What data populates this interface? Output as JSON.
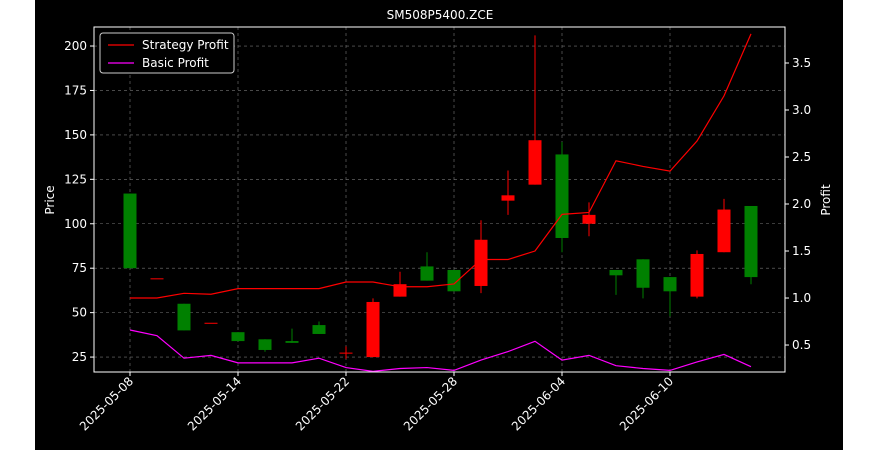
{
  "chart_data": {
    "type": "candlestick",
    "title": "SM508P5400.ZCE",
    "ylabel": "Price",
    "y2label": "Profit",
    "categories": [
      "2025-05-08",
      null,
      null,
      null,
      "2025-05-14",
      null,
      null,
      null,
      "2025-05-22",
      null,
      null,
      null,
      "2025-05-28",
      null,
      null,
      null,
      "2025-06-04",
      null,
      null,
      null,
      "2025-06-10",
      null,
      null,
      null
    ],
    "open": [
      117,
      69,
      55,
      44,
      39,
      35,
      34,
      43,
      27,
      25,
      59,
      76,
      74,
      65,
      113,
      122,
      139,
      100,
      74,
      80,
      70,
      59,
      84,
      110
    ],
    "close": [
      75,
      69.3,
      40,
      44.3,
      34,
      29,
      33,
      38,
      27.5,
      56,
      66,
      68,
      62,
      91,
      116,
      147,
      92,
      105,
      71,
      64,
      62,
      83,
      108,
      70
    ],
    "high": [
      117,
      69,
      55,
      44,
      39,
      35,
      41,
      45,
      31,
      58,
      73,
      84,
      74,
      102,
      130,
      206,
      146,
      112,
      74,
      80,
      70,
      85,
      114,
      110
    ],
    "low": [
      75,
      69,
      40,
      44,
      34,
      28,
      33,
      38,
      24,
      25,
      59,
      68,
      62,
      61,
      105,
      122,
      84,
      93,
      60,
      58,
      48,
      58,
      84,
      66
    ],
    "up_color": "#ff0000",
    "down_color": "#008000",
    "series": [
      {
        "name": "Strategy Profit",
        "color": "#ff0000",
        "axis": "y2",
        "values": [
          1.0,
          1.0,
          1.05,
          1.04,
          1.1,
          1.1,
          1.1,
          1.1,
          1.17,
          1.17,
          1.12,
          1.12,
          1.15,
          1.41,
          1.41,
          1.5,
          1.89,
          1.91,
          2.46,
          2.4,
          2.35,
          2.67,
          3.15,
          3.81
        ]
      },
      {
        "name": "Basic Profit",
        "color": "#ff00ff",
        "axis": "y2",
        "values": [
          0.66,
          0.6,
          0.36,
          0.39,
          0.31,
          0.31,
          0.31,
          0.36,
          0.26,
          0.22,
          0.25,
          0.26,
          0.23,
          0.34,
          0.43,
          0.54,
          0.34,
          0.39,
          0.28,
          0.25,
          0.23,
          0.32,
          0.4,
          0.27
        ]
      }
    ],
    "ylim": [
      16.6,
      210.7
    ],
    "yticks": [
      25,
      50,
      75,
      100,
      125,
      150,
      175,
      200
    ],
    "y2lim": [
      0.213,
      3.883
    ],
    "y2ticks": [
      0.5,
      {
        "value": 1,
        "label": "1.0"
      },
      1.5,
      {
        "value": 2,
        "label": "2.0"
      },
      2.5,
      {
        "value": 3,
        "label": "3.0"
      },
      3.5
    ],
    "grid": true,
    "legend": "upper left"
  }
}
